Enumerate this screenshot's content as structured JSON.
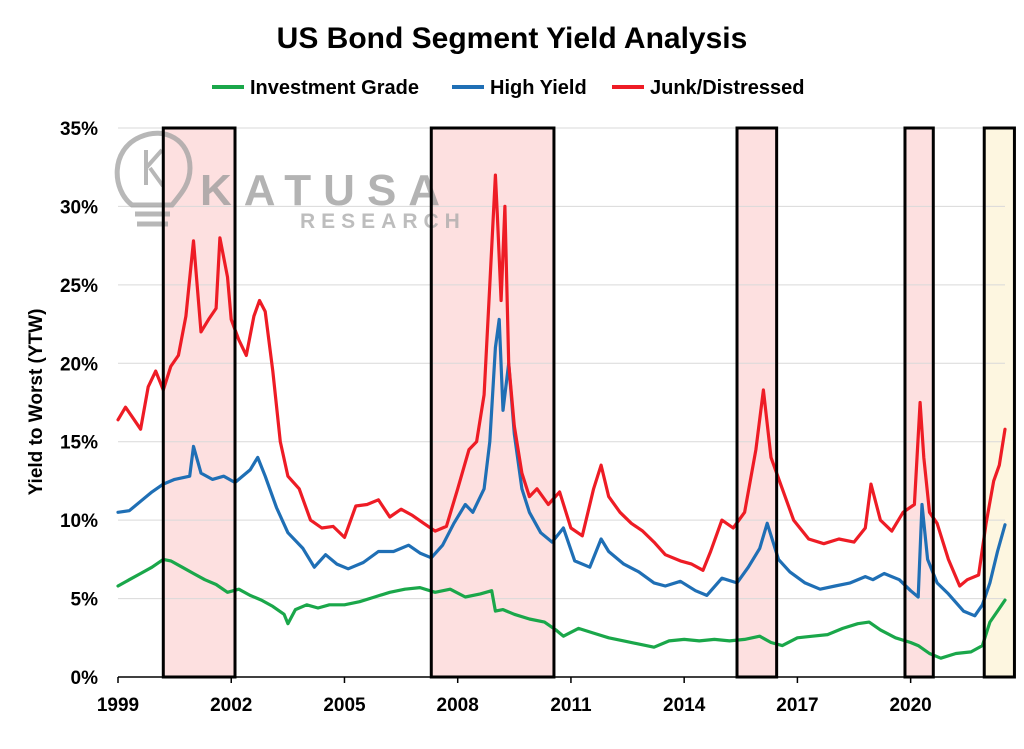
{
  "chart_data": {
    "type": "line",
    "title": "US Bond Segment Yield Analysis",
    "ylabel": "Yield to Worst (YTW)",
    "xlabel": "",
    "xlim": [
      1999.0,
      2022.5
    ],
    "ylim": [
      0,
      35
    ],
    "yticks": [
      "0%",
      "5%",
      "10%",
      "15%",
      "20%",
      "25%",
      "30%",
      "35%"
    ],
    "xticks": [
      "1999",
      "2002",
      "2005",
      "2008",
      "2011",
      "2014",
      "2017",
      "2020"
    ],
    "grid": "horizontal",
    "legend": "top",
    "watermark": {
      "main": "KATUSA",
      "sub": "RESEARCH"
    },
    "highlight_periods": [
      {
        "start": 2000.2,
        "end": 2002.1,
        "color": "#fde0e0"
      },
      {
        "start": 2007.3,
        "end": 2010.55,
        "color": "#fde0e0"
      },
      {
        "start": 2015.4,
        "end": 2016.45,
        "color": "#fde0e0"
      },
      {
        "start": 2019.85,
        "end": 2020.6,
        "color": "#fde0e0"
      },
      {
        "start": 2021.95,
        "end": 2022.75,
        "color": "#fdf6e0"
      }
    ],
    "series": [
      {
        "name": "Investment Grade",
        "color": "#1aa74a",
        "x": [
          1999.0,
          1999.3,
          1999.6,
          1999.9,
          2000.2,
          2000.4,
          2000.7,
          2001.0,
          2001.3,
          2001.6,
          2001.9,
          2002.2,
          2002.5,
          2002.8,
          2003.1,
          2003.4,
          2003.5,
          2003.7,
          2004.0,
          2004.3,
          2004.6,
          2005.0,
          2005.4,
          2005.8,
          2006.2,
          2006.6,
          2007.0,
          2007.4,
          2007.8,
          2008.2,
          2008.6,
          2008.9,
          2009.0,
          2009.2,
          2009.5,
          2009.9,
          2010.3,
          2010.6,
          2010.8,
          2011.2,
          2011.6,
          2012.0,
          2012.4,
          2012.8,
          2013.2,
          2013.6,
          2014.0,
          2014.4,
          2014.8,
          2015.2,
          2015.6,
          2016.0,
          2016.3,
          2016.6,
          2017.0,
          2017.4,
          2017.8,
          2018.2,
          2018.6,
          2018.9,
          2019.2,
          2019.6,
          2020.0,
          2020.2,
          2020.5,
          2020.8,
          2021.2,
          2021.6,
          2021.9,
          2022.1,
          2022.3,
          2022.5
        ],
        "values": [
          5.8,
          6.2,
          6.6,
          7.0,
          7.5,
          7.4,
          7.0,
          6.6,
          6.2,
          5.9,
          5.4,
          5.6,
          5.2,
          4.9,
          4.5,
          4.0,
          3.4,
          4.3,
          4.6,
          4.4,
          4.6,
          4.6,
          4.8,
          5.1,
          5.4,
          5.6,
          5.7,
          5.4,
          5.6,
          5.1,
          5.3,
          5.5,
          4.2,
          4.3,
          4.0,
          3.7,
          3.5,
          3.0,
          2.6,
          3.1,
          2.8,
          2.5,
          2.3,
          2.1,
          1.9,
          2.3,
          2.4,
          2.3,
          2.4,
          2.3,
          2.4,
          2.6,
          2.2,
          2.0,
          2.5,
          2.6,
          2.7,
          3.1,
          3.4,
          3.5,
          3.0,
          2.5,
          2.2,
          2.0,
          1.5,
          1.2,
          1.5,
          1.6,
          2.0,
          3.5,
          4.2,
          4.9
        ]
      },
      {
        "name": "High Yield",
        "color": "#1f6fb5",
        "x": [
          1999.0,
          1999.3,
          1999.6,
          1999.9,
          2000.2,
          2000.5,
          2000.9,
          2001.0,
          2001.2,
          2001.5,
          2001.8,
          2002.1,
          2002.5,
          2002.7,
          2002.9,
          2003.2,
          2003.5,
          2003.9,
          2004.2,
          2004.5,
          2004.8,
          2005.1,
          2005.5,
          2005.9,
          2006.3,
          2006.7,
          2007.0,
          2007.3,
          2007.6,
          2007.9,
          2008.2,
          2008.4,
          2008.7,
          2008.85,
          2009.0,
          2009.1,
          2009.2,
          2009.35,
          2009.5,
          2009.7,
          2009.9,
          2010.2,
          2010.5,
          2010.8,
          2011.1,
          2011.5,
          2011.8,
          2012.0,
          2012.4,
          2012.8,
          2013.2,
          2013.5,
          2013.9,
          2014.3,
          2014.6,
          2015.0,
          2015.4,
          2015.7,
          2016.0,
          2016.2,
          2016.5,
          2016.8,
          2017.2,
          2017.6,
          2018.0,
          2018.4,
          2018.8,
          2019.0,
          2019.3,
          2019.7,
          2020.0,
          2020.2,
          2020.3,
          2020.45,
          2020.7,
          2021.0,
          2021.4,
          2021.7,
          2021.9,
          2022.1,
          2022.3,
          2022.5
        ],
        "values": [
          10.5,
          10.6,
          11.2,
          11.8,
          12.3,
          12.6,
          12.8,
          14.7,
          13.0,
          12.6,
          12.8,
          12.4,
          13.2,
          14.0,
          12.8,
          10.8,
          9.2,
          8.2,
          7.0,
          7.8,
          7.2,
          6.9,
          7.3,
          8.0,
          8.0,
          8.4,
          7.9,
          7.6,
          8.4,
          9.8,
          11.0,
          10.5,
          12.0,
          15.0,
          21.0,
          22.8,
          17.0,
          20.0,
          15.5,
          12.0,
          10.5,
          9.2,
          8.6,
          9.5,
          7.4,
          7.0,
          8.8,
          8.0,
          7.2,
          6.7,
          6.0,
          5.8,
          6.1,
          5.5,
          5.2,
          6.3,
          6.0,
          7.0,
          8.2,
          9.8,
          7.5,
          6.7,
          6.0,
          5.6,
          5.8,
          6.0,
          6.4,
          6.2,
          6.6,
          6.2,
          5.5,
          5.1,
          11.0,
          7.5,
          6.0,
          5.3,
          4.2,
          3.9,
          4.6,
          6.0,
          8.0,
          9.7
        ]
      },
      {
        "name": "Junk/Distressed",
        "color": "#ee1c25",
        "x": [
          1999.0,
          1999.2,
          1999.4,
          1999.6,
          1999.8,
          2000.0,
          2000.2,
          2000.4,
          2000.6,
          2000.8,
          2001.0,
          2001.2,
          2001.4,
          2001.6,
          2001.7,
          2001.9,
          2002.0,
          2002.2,
          2002.4,
          2002.6,
          2002.75,
          2002.9,
          2003.1,
          2003.3,
          2003.5,
          2003.8,
          2004.1,
          2004.4,
          2004.7,
          2005.0,
          2005.3,
          2005.6,
          2005.9,
          2006.2,
          2006.5,
          2006.8,
          2007.1,
          2007.4,
          2007.7,
          2008.0,
          2008.3,
          2008.5,
          2008.7,
          2008.85,
          2009.0,
          2009.05,
          2009.15,
          2009.25,
          2009.35,
          2009.5,
          2009.7,
          2009.9,
          2010.1,
          2010.4,
          2010.7,
          2011.0,
          2011.3,
          2011.6,
          2011.8,
          2012.0,
          2012.3,
          2012.6,
          2012.9,
          2013.2,
          2013.5,
          2013.9,
          2014.2,
          2014.5,
          2014.7,
          2015.0,
          2015.3,
          2015.6,
          2015.9,
          2016.1,
          2016.3,
          2016.6,
          2016.9,
          2017.3,
          2017.7,
          2018.1,
          2018.5,
          2018.8,
          2018.95,
          2019.2,
          2019.5,
          2019.8,
          2020.1,
          2020.25,
          2020.35,
          2020.5,
          2020.7,
          2021.0,
          2021.3,
          2021.5,
          2021.8,
          2022.0,
          2022.2,
          2022.35,
          2022.5
        ],
        "values": [
          16.4,
          17.2,
          16.5,
          15.8,
          18.5,
          19.5,
          18.3,
          19.8,
          20.5,
          23.0,
          27.8,
          22.0,
          22.8,
          23.5,
          28.0,
          25.5,
          22.8,
          21.5,
          20.5,
          23.0,
          24.0,
          23.3,
          19.5,
          15.0,
          12.8,
          12.0,
          10.0,
          9.5,
          9.6,
          8.9,
          10.9,
          11.0,
          11.3,
          10.2,
          10.7,
          10.3,
          9.8,
          9.3,
          9.6,
          12.0,
          14.5,
          15.0,
          18.0,
          25.0,
          32.0,
          29.5,
          24.0,
          30.0,
          20.0,
          16.0,
          13.0,
          11.5,
          12.0,
          11.0,
          11.8,
          9.5,
          9.0,
          12.0,
          13.5,
          11.5,
          10.5,
          9.8,
          9.3,
          8.6,
          7.8,
          7.4,
          7.2,
          6.8,
          8.0,
          10.0,
          9.5,
          10.5,
          14.5,
          18.3,
          14.0,
          12.0,
          10.0,
          8.8,
          8.5,
          8.8,
          8.6,
          9.5,
          12.3,
          10.0,
          9.3,
          10.5,
          11.0,
          17.5,
          14.0,
          10.5,
          9.8,
          7.5,
          5.8,
          6.2,
          6.5,
          9.8,
          12.5,
          13.5,
          15.8
        ]
      }
    ]
  }
}
